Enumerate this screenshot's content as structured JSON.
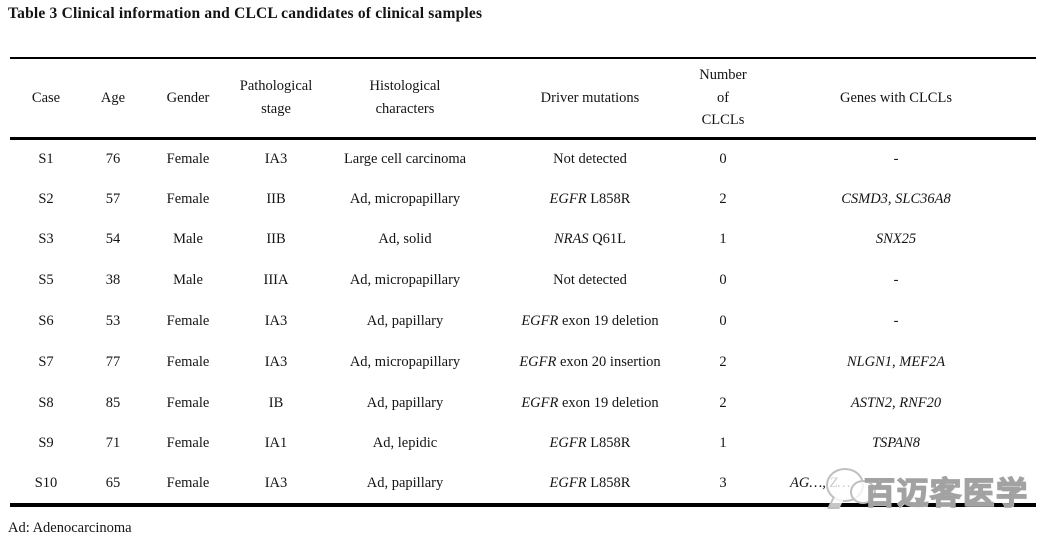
{
  "title": "Table 3 Clinical information and CLCL candidates of clinical samples",
  "footnote": "Ad: Adenocarcinoma",
  "watermark": {
    "text": "百迈客医学",
    "logo": "speech-bubbles"
  },
  "table": {
    "headers": [
      "Case",
      "Age",
      "Gender",
      "Pathological\nstage",
      "Histological\ncharacters",
      "Driver mutations",
      "Number\nof\nCLCLs",
      "Genes with CLCLs"
    ],
    "rows": [
      {
        "case": "S1",
        "age": "76",
        "gender": "Female",
        "stage": "IA3",
        "histology": "Large cell carcinoma",
        "driver_gene": "",
        "driver_rest": "Not detected",
        "clcl_count": "0",
        "genes": "-"
      },
      {
        "case": "S2",
        "age": "57",
        "gender": "Female",
        "stage": "IIB",
        "histology": "Ad, micropapillary",
        "driver_gene": "EGFR",
        "driver_rest": "L858R",
        "clcl_count": "2",
        "genes": "CSMD3, SLC36A8"
      },
      {
        "case": "S3",
        "age": "54",
        "gender": "Male",
        "stage": "IIB",
        "histology": "Ad, solid",
        "driver_gene": "NRAS",
        "driver_rest": "Q61L",
        "clcl_count": "1",
        "genes": "SNX25"
      },
      {
        "case": "S5",
        "age": "38",
        "gender": "Male",
        "stage": "IIIA",
        "histology": "Ad, micropapillary",
        "driver_gene": "",
        "driver_rest": "Not detected",
        "clcl_count": "0",
        "genes": "-"
      },
      {
        "case": "S6",
        "age": "53",
        "gender": "Female",
        "stage": "IA3",
        "histology": "Ad, papillary",
        "driver_gene": "EGFR",
        "driver_rest": "exon 19 deletion",
        "clcl_count": "0",
        "genes": "-"
      },
      {
        "case": "S7",
        "age": "77",
        "gender": "Female",
        "stage": "IA3",
        "histology": "Ad, micropapillary",
        "driver_gene": "EGFR",
        "driver_rest": "exon 20 insertion",
        "clcl_count": "2",
        "genes": "NLGN1, MEF2A"
      },
      {
        "case": "S8",
        "age": "85",
        "gender": "Female",
        "stage": "IB",
        "histology": "Ad, papillary",
        "driver_gene": "EGFR",
        "driver_rest": "exon 19 deletion",
        "clcl_count": "2",
        "genes": "ASTN2, RNF20"
      },
      {
        "case": "S9",
        "age": "71",
        "gender": "Female",
        "stage": "IA1",
        "histology": "Ad, lepidic",
        "driver_gene": "EGFR",
        "driver_rest": "L858R",
        "clcl_count": "1",
        "genes": "TSPAN8"
      },
      {
        "case": "S10",
        "age": "65",
        "gender": "Female",
        "stage": "IA3",
        "histology": "Ad, papillary",
        "driver_gene": "EGFR",
        "driver_rest": "L858R",
        "clcl_count": "3",
        "genes": "AG…, Z…",
        "genes_obscured": true
      }
    ]
  }
}
